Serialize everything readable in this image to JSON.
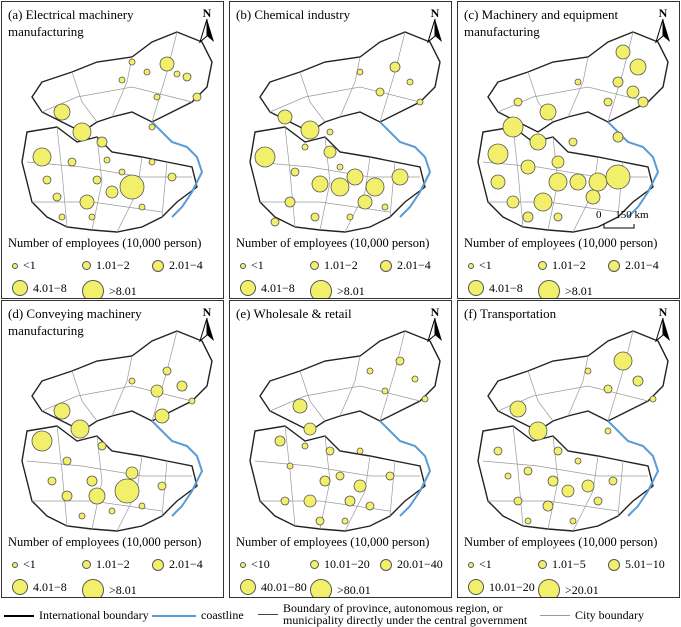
{
  "north_label": "N",
  "legend_title": "Number of employees (10,000 person)",
  "scale_label": "0     150 km",
  "panels": [
    {
      "title": "(a) Electrical machinery manufacturing",
      "classes": [
        "<1",
        "1.01−2",
        "2.01−4",
        "4.01−8",
        ">8.01"
      ]
    },
    {
      "title": "(b) Chemical industry",
      "classes": [
        "<1",
        "1.01−2",
        "2.01−4",
        "4.01−8",
        ">8.01"
      ]
    },
    {
      "title": "(c) Machinery and equipment manufacturing",
      "classes": [
        "<1",
        "1.01−2",
        "2.01−4",
        "4.01−8",
        ">8.01"
      ]
    },
    {
      "title": "(d) Conveying machinery manufacturing",
      "classes": [
        "<1",
        "1.01−2",
        "2.01−4",
        "4.01−8",
        ">8.01"
      ]
    },
    {
      "title": "(e) Wholesale & retail",
      "classes": [
        "<10",
        "10.01−20",
        "20.01−40",
        "40.01−80",
        ">80.01"
      ]
    },
    {
      "title": "(f) Transportation",
      "classes": [
        "<1",
        "1.01−5",
        "5.01−10",
        "10.01−20",
        ">20.01"
      ]
    }
  ],
  "bottom_legend": {
    "international": "International boundary",
    "coastline": "coastline",
    "province": "Boundary of province, autonomous region, or municipality directly under the central government",
    "city": "City boundary"
  },
  "colors": {
    "symbol_fill": "#f2f06a",
    "coastline": "#5b9bd5",
    "city_boundary": "#9a9a9a"
  }
}
